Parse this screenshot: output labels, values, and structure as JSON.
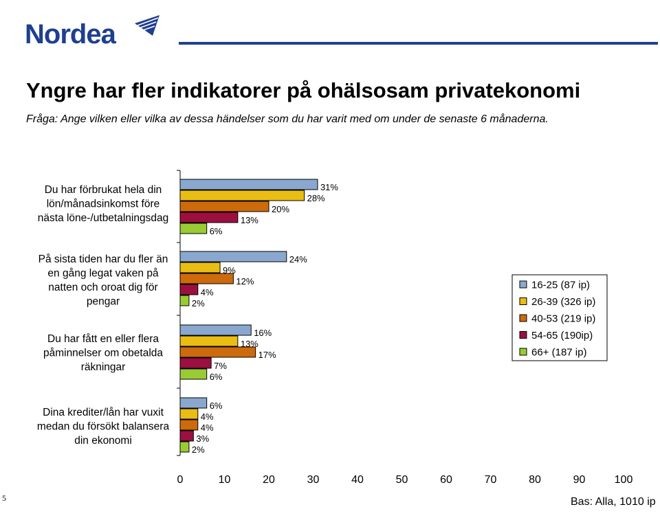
{
  "header": {
    "logo_text": "Nordea",
    "title": "Yngre har fler indikatorer på ohälsosam privatekonomi",
    "question": "Fråga: Ange vilken eller vilka av dessa händelser som du har varit med om under de senaste 6 månaderna."
  },
  "footer": {
    "page_number": "5",
    "base_note": "Bas: Alla, 1010 ip"
  },
  "chart_data": {
    "type": "bar",
    "orientation": "horizontal",
    "xlim": [
      0,
      100
    ],
    "xticks": [
      "0",
      "10",
      "20",
      "30",
      "40",
      "50",
      "60",
      "70",
      "80",
      "90",
      "100"
    ],
    "categories": [
      "Du har förbrukat hela din lön/månadsinkomst före nästa löne-/utbetalningsdag",
      "På sista tiden har du fler än en gång legat vaken på natten och oroat dig för pengar",
      "Du har fått en eller flera påminnelser om obetalda räkningar",
      "Dina krediter/lån har vuxit medan du försökt balansera din ekonomi"
    ],
    "category_lines": [
      [
        "Du har förbrukat hela din",
        "lön/månadsinkomst före",
        "nästa löne-/utbetalningsdag"
      ],
      [
        "På sista tiden har du fler än",
        "en gång legat vaken på",
        "natten och oroat dig för",
        "pengar"
      ],
      [
        "Du har fått en eller flera",
        "påminnelser om obetalda",
        "räkningar"
      ],
      [
        "Dina krediter/lån har vuxit",
        "medan du försökt balansera",
        "din ekonomi"
      ]
    ],
    "series": [
      {
        "name": "16-25 (87 ip)",
        "color": "#8aa8cf",
        "values": [
          31,
          24,
          16,
          6
        ],
        "labels": [
          "31%",
          "24%",
          "16%",
          "6%"
        ]
      },
      {
        "name": "26-39 (326 ip)",
        "color": "#e9bd14",
        "values": [
          28,
          9,
          13,
          4
        ],
        "labels": [
          "28%",
          "9%",
          "13%",
          "4%"
        ]
      },
      {
        "name": "40-53 (219 ip)",
        "color": "#cc6a0c",
        "values": [
          20,
          12,
          17,
          4
        ],
        "labels": [
          "20%",
          "12%",
          "17%",
          "4%"
        ]
      },
      {
        "name": "54-65 (190ip)",
        "color": "#9b1040",
        "values": [
          13,
          4,
          7,
          3
        ],
        "labels": [
          "13%",
          "4%",
          "7%",
          "3%"
        ]
      },
      {
        "name": "66+ (187 ip)",
        "color": "#99cc33",
        "values": [
          6,
          2,
          6,
          2
        ],
        "labels": [
          "6%",
          "2%",
          "6%",
          "2%"
        ]
      }
    ],
    "legend_position": "right"
  }
}
